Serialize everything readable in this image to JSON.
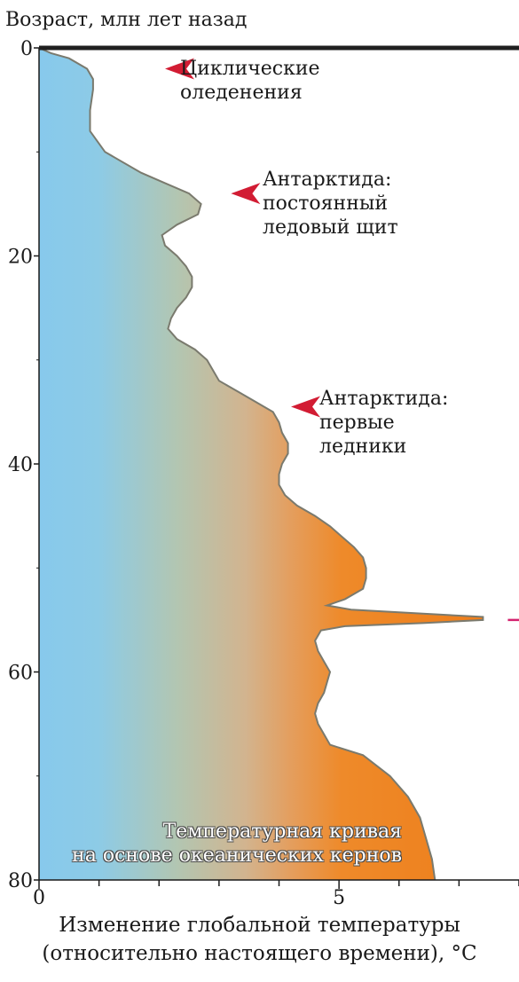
{
  "chart_data": {
    "type": "area",
    "ylabel": "Возраст, млн лет назад",
    "xlabel_line1": "Изменение глобальной температуры",
    "xlabel_line2": "(относительно настоящего времени), °C",
    "xlim": [
      0,
      8
    ],
    "ylim": [
      0,
      80
    ],
    "y_inverted": true,
    "x_ticks": [
      0,
      5
    ],
    "y_ticks": [
      0,
      20,
      40,
      60,
      80
    ],
    "caption_line1": "Температурная кривая",
    "caption_line2": "на основе океанических кернов",
    "colors": {
      "cold": "#8ccbea",
      "mid": "#d3b48e",
      "warm": "#ee8a2a",
      "outline": "#7a7a6e",
      "arrow": "#d21c33",
      "peak_arrow": "#d4236f"
    },
    "annotations": [
      {
        "text": "Циклические\nоледенения",
        "age": 2
      },
      {
        "text": "Антарктида:\nпостоянный\nледовый щит",
        "age": 14
      },
      {
        "text": "Антарктида:\nпервые\nледники",
        "age": 34.5
      }
    ],
    "temperature_curve": {
      "age": [
        0,
        0.5,
        1,
        2,
        3,
        4,
        6,
        8,
        10,
        12,
        13,
        14,
        15,
        16,
        17,
        18,
        19,
        20,
        21,
        22,
        23,
        24,
        25,
        26,
        27,
        28,
        29,
        30,
        31,
        32,
        33,
        34,
        35,
        36,
        37,
        38,
        39,
        40,
        41,
        42,
        43,
        44,
        45,
        46,
        47,
        48,
        49,
        50,
        51,
        52,
        53,
        53.6,
        54,
        54.4,
        54.7,
        55,
        55.3,
        55.6,
        56,
        57,
        58,
        59,
        60,
        61,
        62,
        63,
        64,
        65,
        66,
        67,
        68,
        70,
        72,
        74,
        76,
        78,
        80
      ],
      "value": [
        0,
        0.2,
        0.5,
        0.8,
        0.9,
        0.9,
        0.85,
        0.85,
        1.1,
        1.7,
        2.1,
        2.5,
        2.7,
        2.65,
        2.3,
        2.05,
        2.1,
        2.3,
        2.45,
        2.55,
        2.55,
        2.45,
        2.3,
        2.2,
        2.15,
        2.3,
        2.6,
        2.8,
        2.9,
        3.0,
        3.3,
        3.6,
        3.9,
        4.0,
        4.05,
        4.15,
        4.15,
        4.05,
        4.0,
        4.0,
        4.1,
        4.3,
        4.6,
        4.85,
        5.05,
        5.25,
        5.4,
        5.45,
        5.45,
        5.4,
        5.1,
        4.8,
        5.2,
        6.4,
        7.4,
        7.4,
        6.4,
        5.1,
        4.7,
        4.6,
        4.65,
        4.75,
        4.85,
        4.8,
        4.75,
        4.65,
        4.6,
        4.65,
        4.75,
        4.85,
        5.4,
        5.85,
        6.15,
        6.35,
        6.45,
        6.55,
        6.6
      ]
    }
  }
}
